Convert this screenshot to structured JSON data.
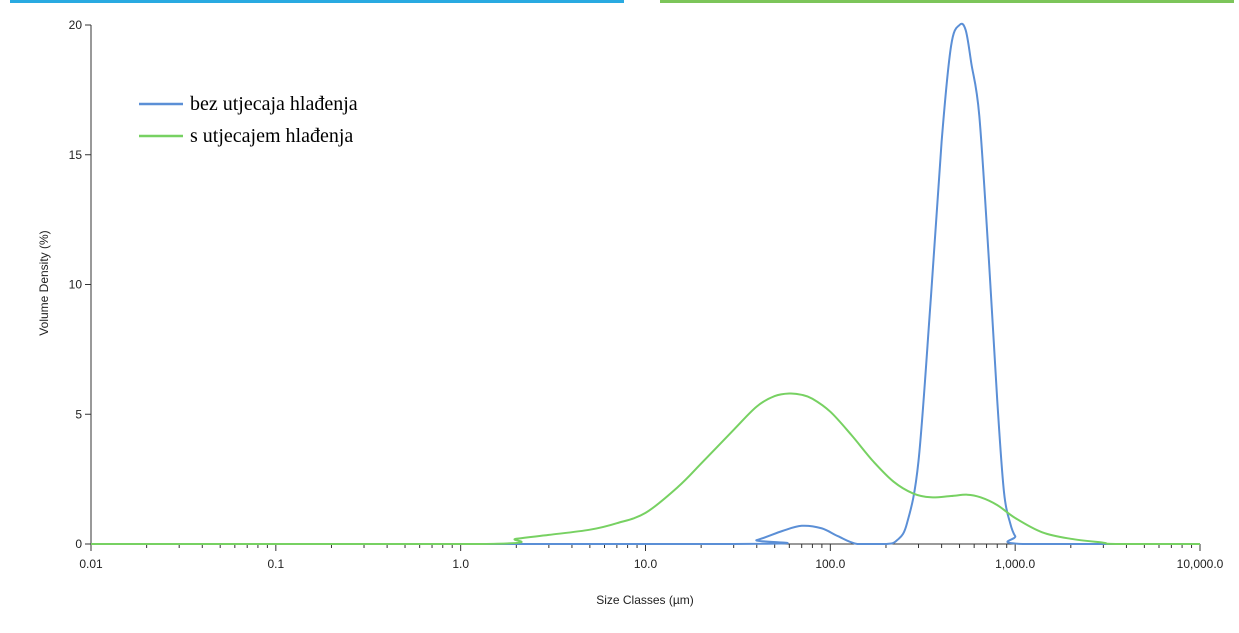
{
  "chart_data": {
    "type": "line",
    "title": "",
    "xlabel": "Size Classes (µm)",
    "ylabel": "Volume Density (%)",
    "x_scale": "log",
    "xlim": [
      0.01,
      10000
    ],
    "ylim": [
      0,
      20
    ],
    "x_ticks": [
      {
        "value": 0.01,
        "label": "0.01"
      },
      {
        "value": 0.1,
        "label": "0.1"
      },
      {
        "value": 1,
        "label": "1.0"
      },
      {
        "value": 10,
        "label": "10.0"
      },
      {
        "value": 100,
        "label": "100.0"
      },
      {
        "value": 1000,
        "label": "1,000.0"
      },
      {
        "value": 10000,
        "label": "10,000.0"
      }
    ],
    "y_ticks": [
      {
        "value": 0,
        "label": "0"
      },
      {
        "value": 5,
        "label": "5"
      },
      {
        "value": 10,
        "label": "10"
      },
      {
        "value": 15,
        "label": "15"
      },
      {
        "value": 20,
        "label": "20"
      }
    ],
    "grid": false,
    "legend_position": "top-left",
    "header_bar_colors": [
      "#29aae1",
      "#7cc55a"
    ],
    "series": [
      {
        "name": "bez utjecaja hlađenja",
        "color": "#5b8fd6",
        "x": [
          0.01,
          30,
          40,
          55,
          70,
          90,
          110,
          140,
          200,
          230,
          260,
          300,
          350,
          400,
          450,
          500,
          540,
          580,
          640,
          720,
          800,
          870,
          940,
          1000,
          1100,
          10000
        ],
        "y": [
          0,
          0,
          0.15,
          0.5,
          0.7,
          0.6,
          0.3,
          0,
          0,
          0.15,
          0.8,
          3.2,
          9.5,
          15.5,
          19.2,
          20.0,
          19.8,
          18.5,
          16.5,
          11,
          5.5,
          2.0,
          0.8,
          0.3,
          0,
          0
        ]
      },
      {
        "name": "s utjecajem hlađenja",
        "color": "#77d162",
        "x": [
          0.01,
          1.3,
          2,
          3,
          5,
          7,
          10,
          15,
          20,
          30,
          40,
          50,
          60,
          70,
          80,
          100,
          130,
          170,
          220,
          280,
          350,
          450,
          550,
          650,
          800,
          1000,
          1400,
          2000,
          3000,
          3500,
          10000
        ],
        "y": [
          0,
          0,
          0.2,
          0.35,
          0.55,
          0.8,
          1.2,
          2.2,
          3.1,
          4.4,
          5.3,
          5.7,
          5.8,
          5.75,
          5.6,
          5.1,
          4.2,
          3.2,
          2.4,
          1.95,
          1.8,
          1.85,
          1.9,
          1.8,
          1.5,
          1.0,
          0.45,
          0.2,
          0.05,
          0,
          0
        ]
      }
    ]
  }
}
